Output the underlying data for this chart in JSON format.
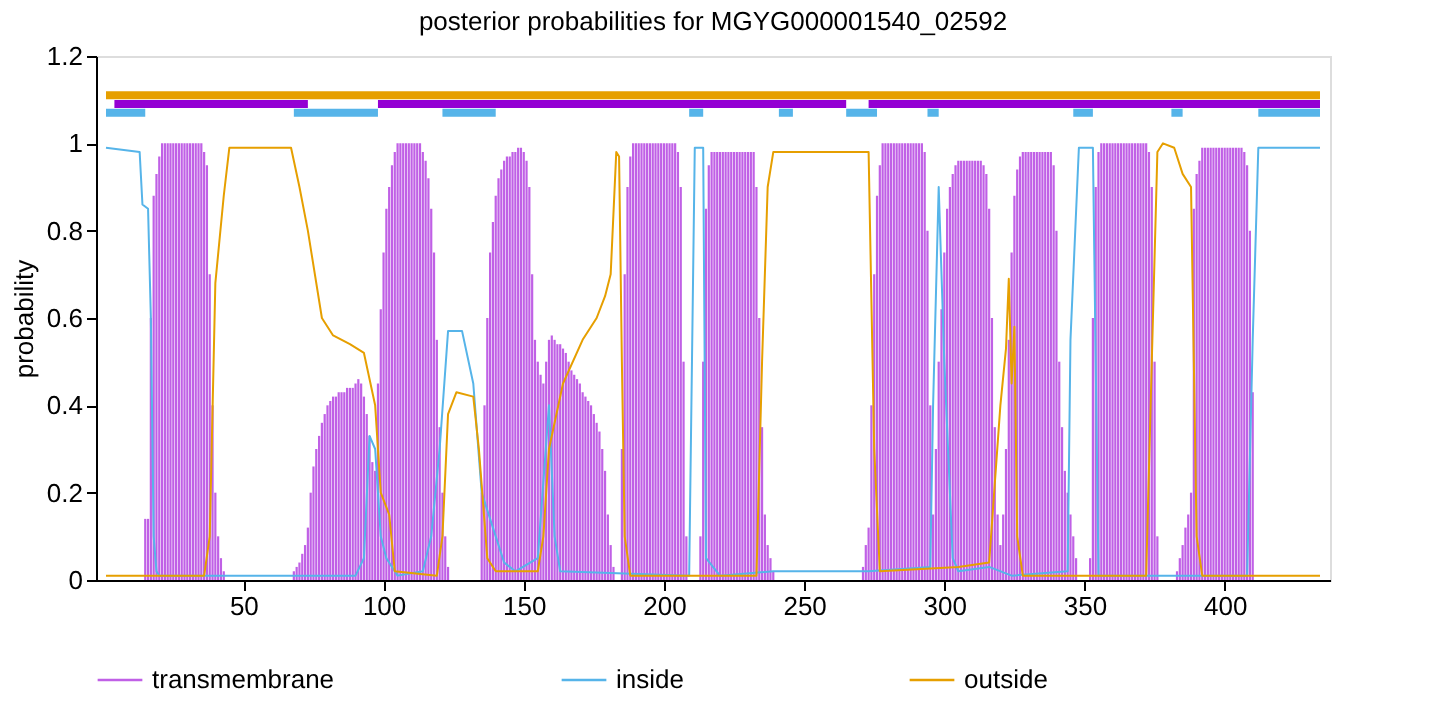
{
  "chart_data": {
    "type": "line",
    "title": "posterior probabilities for MGYG000001540_02592",
    "ylabel": "probability",
    "xlim": [
      1,
      434
    ],
    "xticks": [
      50,
      100,
      150,
      200,
      250,
      300,
      350,
      400
    ],
    "ylim": [
      0,
      1.2
    ],
    "yticks": [
      0,
      0.2,
      0.4,
      0.6,
      0.8,
      1,
      1.2
    ],
    "grid": false,
    "legend": "bottom",
    "series": [
      {
        "color": "#e69f00",
        "x": [
          1,
          434
        ],
        "values": [
          1.11,
          1.11
        ]
      },
      {
        "color": "#9400d3",
        "x": [
          4,
          73,
          null,
          98,
          265,
          null,
          273,
          434
        ],
        "values": [
          1.09,
          1.09,
          null,
          1.09,
          1.09,
          null,
          1.09,
          1.09
        ]
      },
      {
        "color": "#56b4e9",
        "x": [
          1,
          15,
          null,
          68,
          98,
          null,
          121,
          140,
          null,
          209,
          214,
          null,
          241,
          246,
          null,
          265,
          276,
          null,
          294,
          298,
          null,
          346,
          353,
          null,
          381,
          385,
          null,
          412,
          434
        ],
        "values": [
          1.07,
          1.07,
          null,
          1.07,
          1.07,
          null,
          1.07,
          1.07,
          null,
          1.07,
          1.07,
          null,
          1.07,
          1.07,
          null,
          1.07,
          1.07,
          null,
          1.07,
          1.07,
          null,
          1.07,
          1.07,
          null,
          1.07,
          1.07,
          null,
          1.07,
          1.07
        ]
      },
      {
        "name": "transmembrane",
        "type": "bar",
        "color": "#c060e6",
        "x": [
          15,
          16,
          17,
          18,
          19,
          20,
          21,
          22,
          23,
          24,
          25,
          26,
          27,
          28,
          29,
          30,
          31,
          32,
          33,
          34,
          35,
          36,
          37,
          38,
          39,
          40,
          41,
          42,
          43,
          68,
          69,
          70,
          71,
          72,
          73,
          74,
          75,
          76,
          77,
          78,
          79,
          80,
          81,
          82,
          83,
          84,
          85,
          86,
          87,
          88,
          89,
          90,
          91,
          92,
          93,
          94,
          95,
          96,
          97,
          98,
          99,
          100,
          101,
          102,
          103,
          104,
          105,
          106,
          107,
          108,
          109,
          110,
          111,
          112,
          113,
          114,
          115,
          116,
          117,
          118,
          119,
          120,
          121,
          122,
          123,
          135,
          136,
          137,
          138,
          139,
          140,
          141,
          142,
          143,
          144,
          145,
          146,
          147,
          148,
          149,
          150,
          151,
          152,
          153,
          154,
          155,
          156,
          157,
          158,
          159,
          160,
          161,
          162,
          163,
          164,
          165,
          166,
          167,
          168,
          169,
          170,
          171,
          172,
          173,
          174,
          175,
          176,
          177,
          178,
          179,
          180,
          181,
          182,
          185,
          186,
          187,
          188,
          189,
          190,
          191,
          192,
          193,
          194,
          195,
          196,
          197,
          198,
          199,
          200,
          201,
          202,
          203,
          204,
          205,
          206,
          207,
          208,
          213,
          214,
          215,
          216,
          217,
          218,
          219,
          220,
          221,
          222,
          223,
          224,
          225,
          226,
          227,
          228,
          229,
          230,
          231,
          232,
          233,
          234,
          235,
          236,
          237,
          238,
          239,
          271,
          272,
          273,
          274,
          275,
          276,
          277,
          278,
          279,
          280,
          281,
          282,
          283,
          284,
          285,
          286,
          287,
          288,
          289,
          290,
          291,
          292,
          293,
          294,
          295,
          296,
          297,
          298,
          299,
          300,
          301,
          302,
          303,
          304,
          305,
          306,
          307,
          308,
          309,
          310,
          311,
          312,
          313,
          314,
          315,
          316,
          317,
          318,
          319,
          320,
          321,
          322,
          323,
          324,
          325,
          326,
          327,
          328,
          329,
          330,
          331,
          332,
          333,
          334,
          335,
          336,
          337,
          338,
          339,
          340,
          341,
          342,
          343,
          344,
          345,
          346,
          347,
          352,
          353,
          354,
          355,
          356,
          357,
          358,
          359,
          360,
          361,
          362,
          363,
          364,
          365,
          366,
          367,
          368,
          369,
          370,
          371,
          372,
          373,
          374,
          375,
          376,
          383,
          384,
          385,
          386,
          387,
          388,
          389,
          390,
          391,
          392,
          393,
          394,
          395,
          396,
          397,
          398,
          399,
          400,
          401,
          402,
          403,
          404,
          405,
          406,
          407,
          408,
          409,
          410
        ],
        "values": [
          0.14,
          0.14,
          0.6,
          0.88,
          0.93,
          0.97,
          1,
          1,
          1,
          1,
          1,
          1,
          1,
          1,
          1,
          1,
          1,
          1,
          1,
          1,
          1,
          0.98,
          0.95,
          0.7,
          0.4,
          0.2,
          0.1,
          0.05,
          0.02,
          0.02,
          0.03,
          0.04,
          0.06,
          0.08,
          0.12,
          0.2,
          0.26,
          0.3,
          0.33,
          0.36,
          0.38,
          0.4,
          0.41,
          0.42,
          0.42,
          0.43,
          0.43,
          0.43,
          0.44,
          0.44,
          0.44,
          0.45,
          0.46,
          0.45,
          0.42,
          0.38,
          0.33,
          0.27,
          0.25,
          0.45,
          0.62,
          0.75,
          0.85,
          0.9,
          0.95,
          0.98,
          1,
          1,
          1,
          1,
          1,
          1,
          1,
          1,
          1,
          0.98,
          0.96,
          0.92,
          0.85,
          0.75,
          0.55,
          0.35,
          0.2,
          0.1,
          0.03,
          0.2,
          0.4,
          0.6,
          0.75,
          0.82,
          0.88,
          0.92,
          0.94,
          0.96,
          0.97,
          0.97,
          0.98,
          0.98,
          0.99,
          0.99,
          0.98,
          0.96,
          0.9,
          0.7,
          0.55,
          0.5,
          0.47,
          0.45,
          0.5,
          0.55,
          0.56,
          0.55,
          0.54,
          0.54,
          0.53,
          0.52,
          0.5,
          0.48,
          0.47,
          0.46,
          0.45,
          0.43,
          0.42,
          0.41,
          0.4,
          0.38,
          0.36,
          0.34,
          0.3,
          0.25,
          0.15,
          0.08,
          0.03,
          0.3,
          0.7,
          0.9,
          0.97,
          1,
          1,
          1,
          1,
          1,
          1,
          1,
          1,
          1,
          1,
          1,
          1,
          1,
          1,
          1,
          1,
          0.98,
          0.9,
          0.5,
          0.1,
          0.1,
          0.5,
          0.85,
          0.95,
          0.98,
          0.98,
          0.98,
          0.98,
          0.98,
          0.98,
          0.98,
          0.98,
          0.98,
          0.98,
          0.98,
          0.98,
          0.98,
          0.98,
          0.98,
          0.98,
          0.9,
          0.6,
          0.35,
          0.15,
          0.08,
          0.05,
          0.02,
          0.03,
          0.08,
          0.12,
          0.4,
          0.7,
          0.88,
          0.95,
          1,
          1,
          1,
          1,
          1,
          1,
          1,
          1,
          1,
          1,
          1,
          1,
          1,
          1,
          1,
          0.98,
          0.8,
          0.4,
          0.15,
          0.3,
          0.5,
          0.62,
          0.75,
          0.85,
          0.9,
          0.93,
          0.95,
          0.96,
          0.96,
          0.96,
          0.96,
          0.96,
          0.96,
          0.96,
          0.96,
          0.96,
          0.95,
          0.93,
          0.85,
          0.6,
          0.35,
          0.15,
          0.08,
          0.15,
          0.3,
          0.55,
          0.75,
          0.88,
          0.94,
          0.97,
          0.98,
          0.98,
          0.98,
          0.98,
          0.98,
          0.98,
          0.98,
          0.98,
          0.98,
          0.98,
          0.98,
          0.95,
          0.8,
          0.5,
          0.35,
          0.25,
          0.2,
          0.15,
          0.1,
          0.05,
          0.05,
          0.6,
          0.9,
          0.98,
          1,
          1,
          1,
          1,
          1,
          1,
          1,
          1,
          1,
          1,
          1,
          1,
          1,
          1,
          1,
          1,
          1,
          0.98,
          0.9,
          0.5,
          0.1,
          0.02,
          0.05,
          0.08,
          0.12,
          0.15,
          0.2,
          0.85,
          0.93,
          0.96,
          0.99,
          0.99,
          0.99,
          0.99,
          0.99,
          0.99,
          0.99,
          0.99,
          0.99,
          0.99,
          0.99,
          0.99,
          0.99,
          0.99,
          0.99,
          0.98,
          0.95,
          0.8,
          0.43
        ]
      },
      {
        "name": "inside",
        "color": "#56b4e9",
        "x": [
          1,
          13,
          14,
          16,
          17,
          18,
          19,
          20,
          90,
          93,
          95,
          97,
          99,
          101,
          105,
          114,
          117,
          120,
          123,
          128,
          132,
          135,
          140,
          143,
          147,
          155,
          159,
          161,
          163,
          209,
          210,
          211,
          214,
          215,
          220,
          239,
          273,
          295,
          296,
          298,
          300,
          303,
          305,
          316,
          324,
          344,
          345,
          348,
          353,
          355,
          408,
          410,
          412,
          434
        ],
        "values": [
          0.99,
          0.98,
          0.86,
          0.85,
          0.6,
          0.1,
          0.02,
          0.01,
          0.01,
          0.05,
          0.33,
          0.3,
          0.1,
          0.05,
          0.01,
          0.02,
          0.1,
          0.3,
          0.57,
          0.57,
          0.45,
          0.2,
          0.1,
          0.04,
          0.02,
          0.05,
          0.4,
          0.1,
          0.02,
          0.01,
          0.5,
          0.99,
          0.99,
          0.05,
          0.01,
          0.02,
          0.02,
          0.03,
          0.4,
          0.9,
          0.5,
          0.05,
          0.02,
          0.03,
          0.01,
          0.02,
          0.55,
          0.99,
          0.99,
          0.01,
          0.01,
          0.55,
          0.99,
          0.99
        ]
      },
      {
        "name": "outside",
        "color": "#e69f00",
        "x": [
          1,
          36,
          38,
          40,
          43,
          45,
          67,
          70,
          73,
          78,
          82,
          88,
          93,
          97,
          99,
          102,
          104,
          119,
          121,
          123,
          126,
          132,
          134,
          137,
          140,
          155,
          157,
          159,
          164,
          171,
          176,
          179,
          181,
          183,
          184,
          185,
          186,
          188,
          233,
          235,
          237,
          239,
          273,
          275,
          277,
          305,
          316,
          320,
          322,
          323,
          324,
          325,
          326,
          328,
          372,
          374,
          376,
          378,
          382,
          385,
          388,
          389,
          390,
          392,
          434
        ],
        "values": [
          0.01,
          0.01,
          0.1,
          0.68,
          0.88,
          0.99,
          0.99,
          0.9,
          0.8,
          0.6,
          0.56,
          0.54,
          0.52,
          0.4,
          0.2,
          0.15,
          0.02,
          0.01,
          0.1,
          0.38,
          0.43,
          0.42,
          0.3,
          0.05,
          0.02,
          0.02,
          0.1,
          0.3,
          0.45,
          0.55,
          0.6,
          0.65,
          0.7,
          0.98,
          0.97,
          0.5,
          0.1,
          0.01,
          0.01,
          0.5,
          0.9,
          0.98,
          0.98,
          0.3,
          0.02,
          0.03,
          0.04,
          0.4,
          0.53,
          0.69,
          0.45,
          0.58,
          0.1,
          0.01,
          0.01,
          0.5,
          0.98,
          1,
          0.99,
          0.93,
          0.9,
          0.5,
          0.1,
          0.01,
          0.01
        ]
      }
    ]
  }
}
